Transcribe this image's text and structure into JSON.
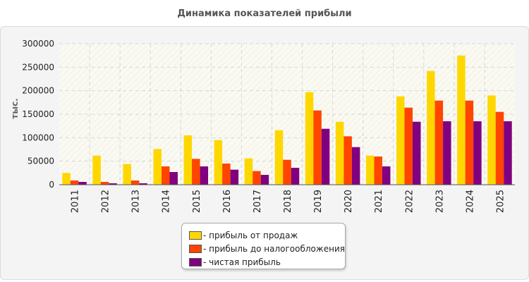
{
  "chart_data": {
    "type": "bar",
    "title": "Динамика показателей прибыли",
    "ylabel": "тыс.",
    "xlabel": "",
    "ylim": [
      0,
      300000
    ],
    "yticks": [
      0,
      50000,
      100000,
      150000,
      200000,
      250000,
      300000
    ],
    "grid": true,
    "legend_position": "bottom",
    "categories": [
      "2011",
      "2012",
      "2013",
      "2014",
      "2015",
      "2016",
      "2017",
      "2018",
      "2019",
      "2020",
      "2021",
      "2022",
      "2023",
      "2024",
      "2025"
    ],
    "series": [
      {
        "name": "- прибыль от продаж",
        "color": "#ffd700",
        "values": [
          25000,
          62000,
          44000,
          76000,
          105000,
          95000,
          56000,
          116000,
          197000,
          134000,
          62000,
          188000,
          242000,
          275000,
          190000
        ]
      },
      {
        "name": "- прибыль до налогообложения",
        "color": "#ff4500",
        "values": [
          9000,
          6000,
          9000,
          39000,
          55000,
          45000,
          29000,
          53000,
          158000,
          103000,
          60000,
          164000,
          179000,
          179000,
          155000
        ]
      },
      {
        "name": "- чистая прибыль",
        "color": "#800080",
        "values": [
          6000,
          3000,
          3000,
          27000,
          39000,
          32000,
          21000,
          36000,
          119000,
          80000,
          39000,
          134000,
          135000,
          135000,
          135000
        ]
      }
    ]
  }
}
